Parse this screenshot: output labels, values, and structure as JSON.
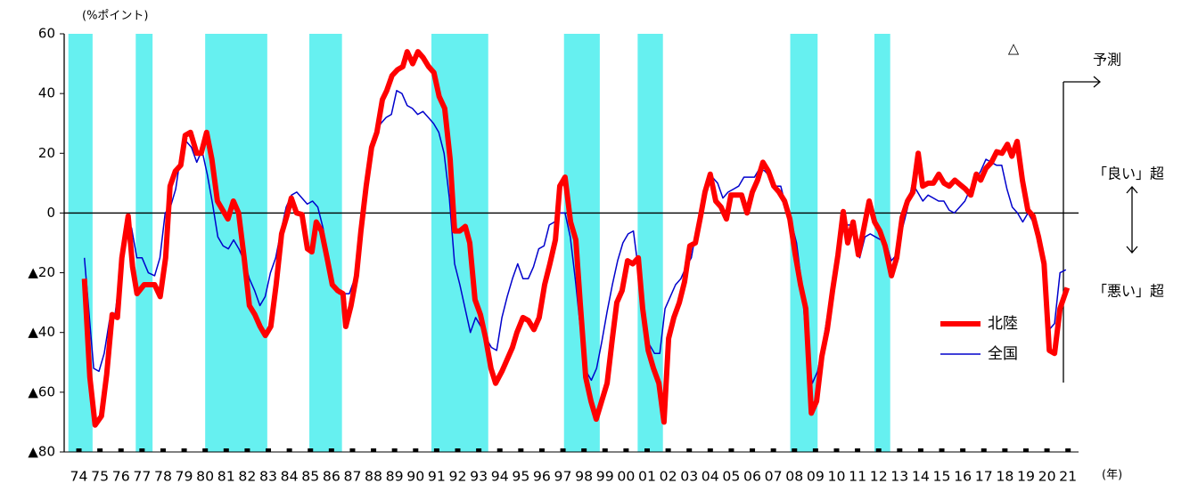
{
  "chart_data": {
    "type": "line",
    "y_unit": "(%ポイント)",
    "x_unit": "(年)",
    "xlim": [
      1973.8,
      2022
    ],
    "ylim": [
      -80,
      60
    ],
    "yticks": [
      60,
      40,
      20,
      0,
      {
        "value": -20,
        "label": "▲20"
      },
      {
        "value": -40,
        "label": "▲40"
      },
      {
        "value": -60,
        "label": "▲60"
      },
      {
        "value": -80,
        "label": "▲80"
      }
    ],
    "xticks": [
      {
        "value": 1974.5,
        "label": "74"
      },
      {
        "value": 1975.5,
        "label": "75"
      },
      {
        "value": 1976.5,
        "label": "76"
      },
      {
        "value": 1977.5,
        "label": "77"
      },
      {
        "value": 1978.5,
        "label": "78"
      },
      {
        "value": 1979.5,
        "label": "79"
      },
      {
        "value": 1980.5,
        "label": "80"
      },
      {
        "value": 1981.5,
        "label": "81"
      },
      {
        "value": 1982.5,
        "label": "82"
      },
      {
        "value": 1983.5,
        "label": "83"
      },
      {
        "value": 1984.5,
        "label": "84"
      },
      {
        "value": 1985.5,
        "label": "85"
      },
      {
        "value": 1986.5,
        "label": "86"
      },
      {
        "value": 1987.5,
        "label": "87"
      },
      {
        "value": 1988.5,
        "label": "88"
      },
      {
        "value": 1989.5,
        "label": "89"
      },
      {
        "value": 1990.5,
        "label": "90"
      },
      {
        "value": 1991.5,
        "label": "91"
      },
      {
        "value": 1992.5,
        "label": "92"
      },
      {
        "value": 1993.5,
        "label": "93"
      },
      {
        "value": 1994.5,
        "label": "94"
      },
      {
        "value": 1995.5,
        "label": "95"
      },
      {
        "value": 1996.5,
        "label": "96"
      },
      {
        "value": 1997.5,
        "label": "97"
      },
      {
        "value": 1998.5,
        "label": "98"
      },
      {
        "value": 1999.5,
        "label": "99"
      },
      {
        "value": 2000.5,
        "label": "00"
      },
      {
        "value": 2001.5,
        "label": "01"
      },
      {
        "value": 2002.5,
        "label": "02"
      },
      {
        "value": 2003.5,
        "label": "03"
      },
      {
        "value": 2004.5,
        "label": "04"
      },
      {
        "value": 2005.5,
        "label": "05"
      },
      {
        "value": 2006.5,
        "label": "06"
      },
      {
        "value": 2007.5,
        "label": "07"
      },
      {
        "value": 2008.5,
        "label": "08"
      },
      {
        "value": 2009.5,
        "label": "09"
      },
      {
        "value": 2010.5,
        "label": "10"
      },
      {
        "value": 2011.5,
        "label": "11"
      },
      {
        "value": 2012.5,
        "label": "12"
      },
      {
        "value": 2013.5,
        "label": "13"
      },
      {
        "value": 2014.5,
        "label": "14"
      },
      {
        "value": 2015.5,
        "label": "15"
      },
      {
        "value": 2016.5,
        "label": "16"
      },
      {
        "value": 2017.5,
        "label": "17"
      },
      {
        "value": 2018.5,
        "label": "18"
      },
      {
        "value": 2019.5,
        "label": "19"
      },
      {
        "value": 2020.5,
        "label": "20"
      },
      {
        "value": 2021.5,
        "label": "21"
      }
    ],
    "shaded_color": "#66f0f0",
    "shaded_periods": [
      [
        1974.0,
        1975.15
      ],
      [
        1977.2,
        1978.0
      ],
      [
        1980.5,
        1983.45
      ],
      [
        1985.45,
        1987.0
      ],
      [
        1991.25,
        1993.95
      ],
      [
        1997.55,
        1999.25
      ],
      [
        2001.05,
        2002.25
      ],
      [
        2008.3,
        2009.6
      ],
      [
        2012.3,
        2013.05
      ]
    ],
    "series": [
      {
        "name": "北陸",
        "color": "#ff0000",
        "width": 6,
        "x": [
          1974.76,
          1975.02,
          1975.27,
          1975.57,
          1975.82,
          1976.08,
          1976.33,
          1976.54,
          1976.84,
          1977.05,
          1977.26,
          1977.6,
          1978.1,
          1978.36,
          1978.62,
          1978.83,
          1979.08,
          1979.34,
          1979.55,
          1979.8,
          1980.1,
          1980.31,
          1980.57,
          1980.82,
          1981.08,
          1981.33,
          1981.58,
          1981.84,
          1982.09,
          1982.35,
          1982.6,
          1982.86,
          1983.11,
          1983.36,
          1983.62,
          1983.87,
          1984.13,
          1984.38,
          1984.59,
          1984.84,
          1985.1,
          1985.36,
          1985.57,
          1985.78,
          1986.03,
          1986.29,
          1986.54,
          1986.8,
          1987.05,
          1987.18,
          1987.43,
          1987.69,
          1987.9,
          1988.15,
          1988.41,
          1988.66,
          1988.92,
          1989.13,
          1989.38,
          1989.64,
          1989.89,
          1990.1,
          1990.36,
          1990.61,
          1990.86,
          1991.12,
          1991.37,
          1991.62,
          1991.88,
          1992.14,
          1992.35,
          1992.6,
          1992.86,
          1993.07,
          1993.32,
          1993.58,
          1993.83,
          1994.08,
          1994.3,
          1994.6,
          1994.85,
          1995.1,
          1995.31,
          1995.6,
          1995.86,
          1996.12,
          1996.37,
          1996.63,
          1996.88,
          1997.14,
          1997.35,
          1997.6,
          1997.86,
          1998.11,
          1998.32,
          1998.58,
          1998.83,
          1999.08,
          1999.34,
          1999.6,
          1999.85,
          2000.06,
          2000.31,
          2000.57,
          2000.82,
          2001.08,
          2001.29,
          2001.55,
          2001.8,
          2002.06,
          2002.3,
          2002.52,
          2002.77,
          2003.03,
          2003.28,
          2003.53,
          2003.79,
          2004.04,
          2004.25,
          2004.5,
          2004.76,
          2005.01,
          2005.27,
          2005.48,
          2005.74,
          2005.99,
          2006.25,
          2006.5,
          2006.75,
          2007.0,
          2007.26,
          2007.52,
          2007.77,
          2008.03,
          2008.28,
          2008.54,
          2008.79,
          2009.04,
          2009.3,
          2009.55,
          2009.8,
          2010.06,
          2010.31,
          2010.57,
          2010.82,
          2011.03,
          2011.29,
          2011.54,
          2011.8,
          2012.05,
          2012.31,
          2012.56,
          2012.81,
          2013.11,
          2013.36,
          2013.62,
          2013.87,
          2014.13,
          2014.38,
          2014.59,
          2014.85,
          2015.1,
          2015.36,
          2015.61,
          2015.86,
          2016.12,
          2016.37,
          2016.63,
          2016.88,
          2017.14,
          2017.35,
          2017.6,
          2017.86,
          2018.11,
          2018.36,
          2018.62,
          2018.83,
          2019.08,
          2019.33,
          2019.59,
          2019.84,
          2020.1,
          2020.36,
          2020.61,
          2020.86,
          2021.12,
          2021.46
        ],
        "values": [
          -22,
          -55,
          -71,
          -68,
          -54,
          -34,
          -35,
          -15,
          -1,
          -18,
          -27,
          -24,
          -24,
          -28,
          -15,
          9,
          14,
          16,
          26,
          27,
          20,
          20,
          27,
          18,
          4,
          1,
          -2,
          4,
          0,
          -15,
          -31,
          -34,
          -38,
          -41,
          -38,
          -24,
          -7,
          -1,
          5,
          0,
          -0.5,
          -12,
          -13,
          -3,
          -6,
          -15,
          -24,
          -26,
          -27,
          -38,
          -31,
          -21,
          -6,
          9,
          22,
          27,
          38,
          41,
          46,
          48,
          49,
          54,
          50,
          54,
          52,
          49,
          47,
          39,
          35,
          18,
          -6,
          -6,
          -4.5,
          -10,
          -29,
          -34,
          -42,
          -52,
          -57,
          -53,
          -49,
          -45,
          -40,
          -35,
          -36,
          -39,
          -35,
          -24,
          -17,
          -9,
          9,
          12,
          -3,
          -9,
          -30,
          -55,
          -63,
          -69,
          -63,
          -57,
          -42,
          -30,
          -26,
          -16,
          -17,
          -15,
          -32,
          -46,
          -52,
          -57,
          -70,
          -42,
          -35,
          -30,
          -23,
          -11,
          -10,
          -1,
          7,
          13,
          4,
          2,
          -2,
          6,
          6,
          6,
          0,
          7,
          11,
          17,
          14,
          9,
          7,
          4,
          -2,
          -14,
          -24,
          -32,
          -67,
          -63,
          -48,
          -39,
          -26,
          -14,
          0.5,
          -10,
          -3,
          -14,
          -5,
          4,
          -3,
          -6,
          -11,
          -21,
          -15,
          -1.5,
          4,
          7,
          20,
          9,
          10,
          10,
          13,
          10,
          9,
          11,
          9.5,
          8,
          6,
          13,
          11,
          15,
          17,
          20.5,
          20,
          23,
          19,
          24,
          11,
          1,
          -1,
          -8,
          -17,
          -46,
          -47,
          -32,
          -25
        ]
      },
      {
        "name": "全国",
        "color": "#0000cc",
        "width": 1.5,
        "x": [
          1974.76,
          1975.0,
          1975.2,
          1975.45,
          1975.7,
          1975.95,
          1976.2,
          1976.5,
          1976.75,
          1977.0,
          1977.25,
          1977.5,
          1977.8,
          1978.1,
          1978.35,
          1978.6,
          1978.85,
          1979.1,
          1979.35,
          1979.6,
          1979.85,
          1980.1,
          1980.35,
          1980.6,
          1980.85,
          1981.1,
          1981.35,
          1981.6,
          1981.85,
          1982.1,
          1982.35,
          1982.6,
          1982.85,
          1983.1,
          1983.35,
          1983.6,
          1983.85,
          1984.1,
          1984.35,
          1984.6,
          1984.85,
          1985.1,
          1985.35,
          1985.6,
          1985.85,
          1986.1,
          1986.35,
          1986.6,
          1986.85,
          1987.1,
          1987.35,
          1987.6,
          1987.85,
          1988.1,
          1988.35,
          1988.6,
          1988.85,
          1989.1,
          1989.35,
          1989.6,
          1989.85,
          1990.1,
          1990.35,
          1990.6,
          1990.85,
          1991.1,
          1991.35,
          1991.6,
          1991.85,
          1992.1,
          1992.35,
          1992.6,
          1992.85,
          1993.1,
          1993.35,
          1993.6,
          1993.85,
          1994.1,
          1994.35,
          1994.6,
          1994.85,
          1995.1,
          1995.35,
          1995.6,
          1995.85,
          1996.1,
          1996.35,
          1996.6,
          1996.85,
          1997.1,
          1997.35,
          1997.6,
          1997.85,
          1998.1,
          1998.35,
          1998.6,
          1998.85,
          1999.1,
          1999.35,
          1999.6,
          1999.85,
          2000.1,
          2000.35,
          2000.6,
          2000.85,
          2001.1,
          2001.35,
          2001.6,
          2001.85,
          2002.1,
          2002.35,
          2002.6,
          2002.85,
          2003.1,
          2003.35,
          2003.6,
          2003.85,
          2004.1,
          2004.35,
          2004.6,
          2004.85,
          2005.1,
          2005.35,
          2005.6,
          2005.85,
          2006.1,
          2006.35,
          2006.6,
          2006.85,
          2007.1,
          2007.35,
          2007.6,
          2007.85,
          2008.1,
          2008.35,
          2008.6,
          2008.85,
          2009.1,
          2009.35,
          2009.6,
          2009.85,
          2010.1,
          2010.35,
          2010.6,
          2010.85,
          2011.1,
          2011.35,
          2011.6,
          2011.85,
          2012.1,
          2012.35,
          2012.6,
          2012.85,
          2013.1,
          2013.35,
          2013.6,
          2013.85,
          2014.1,
          2014.35,
          2014.6,
          2014.85,
          2015.1,
          2015.35,
          2015.6,
          2015.85,
          2016.1,
          2016.35,
          2016.6,
          2016.85,
          2017.1,
          2017.35,
          2017.6,
          2017.85,
          2018.1,
          2018.35,
          2018.6,
          2018.85,
          2019.1,
          2019.35,
          2019.6,
          2019.84,
          2020.1,
          2020.36,
          2020.61,
          2020.86,
          2021.12,
          2021.4
        ],
        "values": [
          -15,
          -35,
          -52,
          -53,
          -47,
          -36,
          -35,
          -18,
          -4,
          -5,
          -15,
          -15,
          -20,
          -21,
          -15,
          0,
          2,
          8,
          20,
          24,
          22,
          17,
          21,
          13,
          3,
          -8,
          -11,
          -12,
          -9,
          -12,
          -16,
          -22,
          -26,
          -31,
          -28,
          -20,
          -15,
          -6,
          2,
          6,
          7,
          5,
          3,
          4,
          2,
          -5,
          -16,
          -24,
          -27,
          -27,
          -27,
          -22,
          -12,
          5,
          20,
          27,
          30,
          32,
          33,
          41,
          40,
          36,
          35,
          33,
          34,
          32,
          30,
          27,
          20,
          5,
          -17,
          -24,
          -32,
          -40,
          -35,
          -38,
          -42,
          -45,
          -46,
          -35,
          -28,
          -22,
          -17,
          -22,
          -22,
          -18,
          -12,
          -11,
          -4,
          -3,
          0,
          0,
          -8,
          -23,
          -40,
          -53,
          -56,
          -52,
          -43,
          -33,
          -24,
          -16,
          -10,
          -7,
          -6,
          -20,
          -35,
          -44,
          -47,
          -47,
          -32,
          -28,
          -24,
          -22,
          -18,
          -15,
          -5,
          3,
          11,
          12,
          10,
          5,
          7,
          8,
          9,
          12,
          12,
          12,
          15,
          14,
          12,
          9,
          9,
          2,
          -3,
          -10,
          -24,
          -46,
          -57,
          -53,
          -44,
          -33,
          -24,
          -13,
          -4,
          -4,
          -4,
          -15,
          -8,
          -7,
          -8,
          -9,
          -10,
          -16,
          -14,
          -6,
          1,
          10,
          7,
          4,
          6,
          5,
          4,
          4,
          1,
          0,
          2,
          4,
          8,
          11,
          14,
          18,
          17,
          16,
          16,
          8,
          2,
          0,
          -3,
          0,
          -3,
          -8,
          -15,
          -39,
          -37,
          -20,
          -19
        ]
      }
    ],
    "annotations": {
      "triangle": "△",
      "forecast": "予測",
      "above": "「良い」超",
      "below": "「悪い」超"
    }
  }
}
